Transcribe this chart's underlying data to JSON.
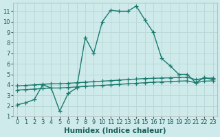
{
  "line1_x": [
    0,
    1,
    2,
    3,
    4,
    5,
    6,
    7,
    8,
    9,
    10,
    11,
    12,
    13,
    14,
    15,
    16,
    17,
    18,
    19,
    20,
    21,
    22,
    23
  ],
  "line1_y": [
    2.1,
    2.3,
    2.6,
    4.0,
    3.7,
    1.5,
    3.2,
    3.7,
    8.5,
    7.0,
    10.0,
    11.1,
    11.0,
    11.0,
    11.5,
    10.2,
    9.0,
    6.5,
    5.8,
    5.0,
    5.0,
    4.2,
    4.7,
    4.5
  ],
  "line2_x": [
    0,
    1,
    2,
    3,
    4,
    5,
    6,
    7,
    8,
    9,
    10,
    11,
    12,
    13,
    14,
    15,
    16,
    17,
    18,
    19,
    20,
    21,
    22,
    23
  ],
  "line2_y": [
    3.5,
    3.55,
    3.6,
    3.65,
    3.7,
    3.7,
    3.75,
    3.8,
    3.85,
    3.9,
    3.95,
    4.0,
    4.05,
    4.1,
    4.15,
    4.2,
    4.25,
    4.28,
    4.3,
    4.35,
    4.38,
    4.2,
    4.35,
    4.38
  ],
  "line3_x": [
    0,
    1,
    2,
    3,
    4,
    5,
    6,
    7,
    8,
    9,
    10,
    11,
    12,
    13,
    14,
    15,
    16,
    17,
    18,
    19,
    20,
    21,
    22,
    23
  ],
  "line3_y": [
    3.9,
    3.95,
    4.0,
    4.05,
    4.1,
    4.1,
    4.15,
    4.2,
    4.25,
    4.3,
    4.35,
    4.4,
    4.45,
    4.5,
    4.55,
    4.6,
    4.62,
    4.65,
    4.67,
    4.7,
    4.72,
    4.5,
    4.62,
    4.65
  ],
  "line_color": "#1a7a6e",
  "bg_color": "#ceeaea",
  "grid_color": "#b8d8d4",
  "xlabel": "Humidex (Indice chaleur)",
  "xlim": [
    -0.5,
    23.5
  ],
  "ylim": [
    1,
    11.8
  ],
  "xticks": [
    0,
    1,
    2,
    3,
    4,
    5,
    6,
    7,
    8,
    9,
    10,
    11,
    12,
    13,
    14,
    15,
    16,
    17,
    18,
    19,
    20,
    21,
    22,
    23
  ],
  "yticks": [
    1,
    2,
    3,
    4,
    5,
    6,
    7,
    8,
    9,
    10,
    11
  ],
  "marker": "+",
  "markersize": 4,
  "linewidth": 1.0,
  "xlabel_fontsize": 7.5,
  "tick_fontsize": 6.0
}
